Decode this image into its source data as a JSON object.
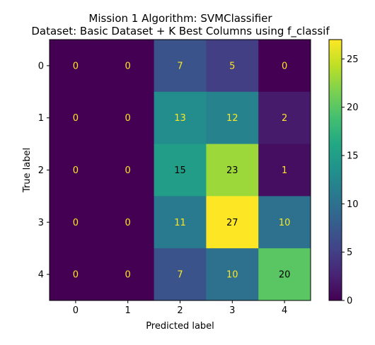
{
  "chart_data": {
    "type": "heatmap",
    "title": "Mission 1 Algorithm: SVMClassifier",
    "subtitle": "Dataset: Basic Dataset + K Best Columns using f_classif",
    "xlabel": "Predicted label",
    "ylabel": "True label",
    "x_categories": [
      "0",
      "1",
      "2",
      "3",
      "4"
    ],
    "y_categories": [
      "0",
      "1",
      "2",
      "3",
      "4"
    ],
    "matrix": [
      [
        0,
        0,
        7,
        5,
        0
      ],
      [
        0,
        0,
        13,
        12,
        2
      ],
      [
        0,
        0,
        15,
        23,
        1
      ],
      [
        0,
        0,
        11,
        27,
        10
      ],
      [
        0,
        0,
        7,
        10,
        20
      ]
    ],
    "colormap": "viridis",
    "vmin": 0,
    "vmax": 27,
    "colorbar_ticks": [
      "0",
      "5",
      "10",
      "15",
      "20",
      "25"
    ],
    "colorbar_tick_values": [
      0,
      5,
      10,
      15,
      20,
      25
    ],
    "low_text_color": "#fde725",
    "high_text_color": "#000000"
  }
}
